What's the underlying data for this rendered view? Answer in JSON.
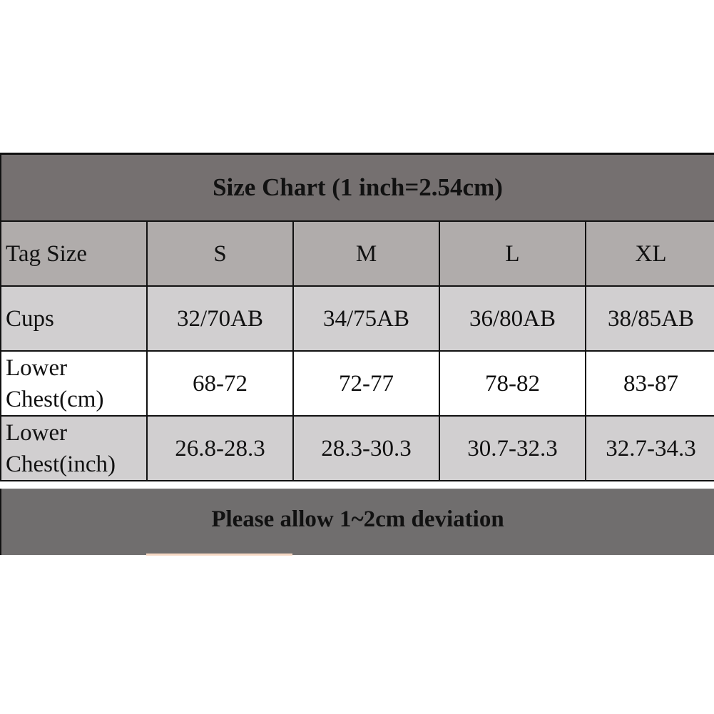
{
  "title": "Size Chart (1 inch=2.54cm)",
  "header": {
    "label": "Tag Size",
    "sizes": [
      "S",
      "M",
      "L",
      "XL"
    ]
  },
  "rows": [
    {
      "label": "Cups",
      "values": [
        "32/70AB",
        "34/75AB",
        "36/80AB",
        "38/85AB"
      ]
    },
    {
      "label": "Lower Chest(cm)",
      "values": [
        "68-72",
        "72-77",
        "78-82",
        "83-87"
      ]
    },
    {
      "label": "Lower Chest(inch)",
      "values": [
        "26.8-28.3",
        "28.3-30.3",
        "30.7-32.3",
        "32.7-34.3"
      ]
    }
  ],
  "footer": "Please allow 1~2cm deviation"
}
